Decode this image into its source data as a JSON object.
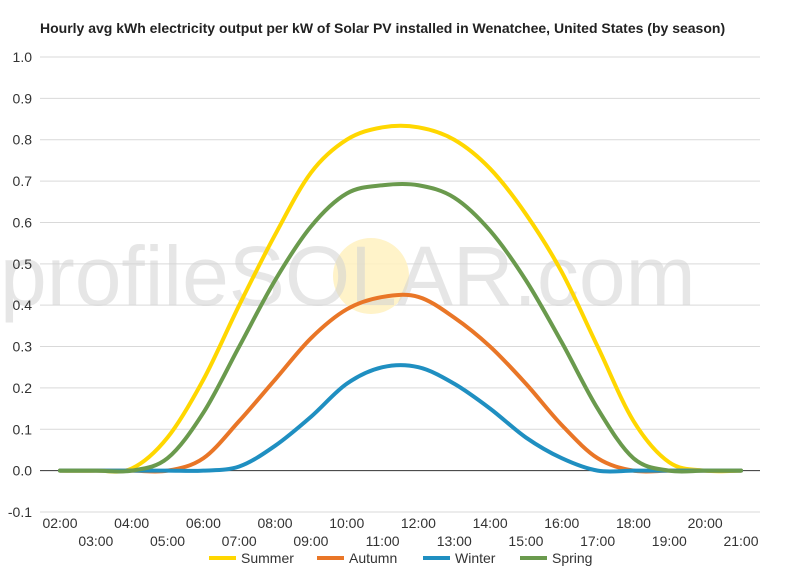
{
  "chart_data": {
    "type": "line",
    "title": "Hourly avg kWh electricity output per kW of Solar PV installed in Wenatchee, United States (by season)",
    "watermark": "profileSOLAR.com",
    "xlabel": "",
    "ylabel": "",
    "ylim": [
      -0.1,
      1.0
    ],
    "y_ticks": [
      "1.0",
      "0.9",
      "0.8",
      "0.7",
      "0.6",
      "0.5",
      "0.4",
      "0.3",
      "0.2",
      "0.1",
      "0.0",
      "-0.1"
    ],
    "x_ticks_upper": [
      "02:00",
      "04:00",
      "06:00",
      "08:00",
      "10:00",
      "12:00",
      "14:00",
      "16:00",
      "18:00",
      "20:00"
    ],
    "x_ticks_lower": [
      "03:00",
      "05:00",
      "07:00",
      "09:00",
      "11:00",
      "13:00",
      "15:00",
      "17:00",
      "19:00",
      "21:00"
    ],
    "x": [
      "02:00",
      "03:00",
      "04:00",
      "05:00",
      "06:00",
      "07:00",
      "08:00",
      "09:00",
      "10:00",
      "11:00",
      "12:00",
      "13:00",
      "14:00",
      "15:00",
      "16:00",
      "17:00",
      "18:00",
      "19:00",
      "20:00",
      "21:00"
    ],
    "grid": true,
    "legend_position": "bottom",
    "series": [
      {
        "name": "Summer",
        "color": "#ffd700",
        "values": [
          0.0,
          0.0,
          0.005,
          0.08,
          0.22,
          0.4,
          0.57,
          0.72,
          0.8,
          0.83,
          0.83,
          0.8,
          0.73,
          0.62,
          0.48,
          0.3,
          0.12,
          0.02,
          0.0,
          0.0
        ]
      },
      {
        "name": "Autumn",
        "color": "#e97627",
        "values": [
          0.0,
          0.0,
          0.0,
          0.0,
          0.03,
          0.12,
          0.22,
          0.32,
          0.39,
          0.42,
          0.42,
          0.37,
          0.3,
          0.21,
          0.11,
          0.03,
          0.0,
          0.0,
          0.0,
          0.0
        ]
      },
      {
        "name": "Winter",
        "color": "#1f8fc1",
        "values": [
          0.0,
          0.0,
          0.0,
          0.0,
          0.0,
          0.01,
          0.06,
          0.13,
          0.21,
          0.25,
          0.25,
          0.21,
          0.15,
          0.08,
          0.03,
          0.0,
          0.0,
          0.0,
          0.0,
          0.0
        ]
      },
      {
        "name": "Spring",
        "color": "#6a9a4d",
        "values": [
          0.0,
          0.0,
          0.0,
          0.03,
          0.14,
          0.3,
          0.46,
          0.59,
          0.67,
          0.69,
          0.69,
          0.66,
          0.58,
          0.46,
          0.31,
          0.15,
          0.03,
          0.0,
          0.0,
          0.0
        ]
      }
    ]
  }
}
